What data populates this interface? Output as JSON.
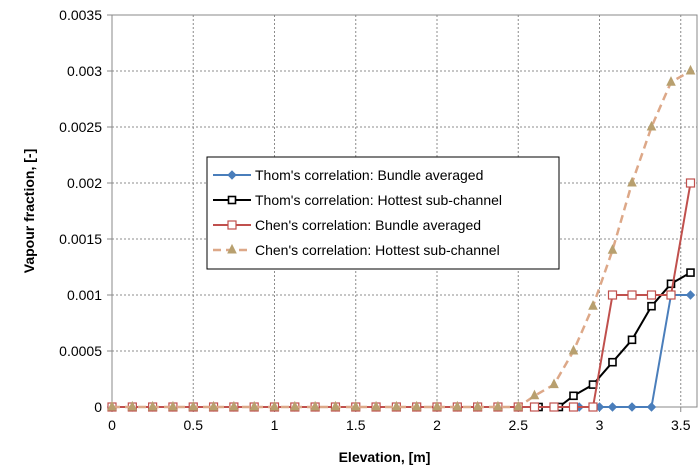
{
  "chart_data": {
    "type": "line",
    "xlabel": "Elevation,  [m]",
    "ylabel": "Vapour fraction, [-]",
    "xlim": [
      0,
      3.6
    ],
    "ylim": [
      0,
      0.0035
    ],
    "x_ticks": [
      "0",
      "0.5",
      "1",
      "1.5",
      "2",
      "2.5",
      "3",
      "3.5"
    ],
    "y_ticks": [
      "0",
      "0.0005",
      "0.001",
      "0.0015",
      "0.002",
      "0.0025",
      "0.003",
      "0.0035"
    ],
    "x_tick_values": [
      0,
      0.5,
      1,
      1.5,
      2,
      2.5,
      3,
      3.5
    ],
    "y_tick_values": [
      0,
      0.0005,
      0.001,
      0.0015,
      0.002,
      0.0025,
      0.003,
      0.0035
    ],
    "grid": true,
    "legend_position": "center-left",
    "series": [
      {
        "name": "Thom's correlation: Bundle averaged",
        "color": "#4a7ebb",
        "marker": "diamond",
        "dashed": false,
        "x": [
          0,
          0.125,
          0.25,
          0.375,
          0.5,
          0.625,
          0.75,
          0.875,
          1.0,
          1.125,
          1.25,
          1.375,
          1.5,
          1.625,
          1.75,
          1.875,
          2.0,
          2.125,
          2.25,
          2.375,
          2.5,
          2.625,
          2.75,
          2.875,
          3.0,
          3.08,
          3.2,
          3.32,
          3.44,
          3.56
        ],
        "y": [
          0,
          0,
          0,
          0,
          0,
          0,
          0,
          0,
          0,
          0,
          0,
          0,
          0,
          0,
          0,
          0,
          0,
          0,
          0,
          0,
          0,
          0,
          0,
          0,
          0,
          0,
          0,
          0,
          0.001,
          0.001
        ]
      },
      {
        "name": "Thom's correlation: Hottest sub-channel",
        "color": "#000000",
        "marker": "square",
        "dashed": false,
        "x": [
          0,
          0.125,
          0.25,
          0.375,
          0.5,
          0.625,
          0.75,
          0.875,
          1.0,
          1.125,
          1.25,
          1.375,
          1.5,
          1.625,
          1.75,
          1.875,
          2.0,
          2.125,
          2.25,
          2.375,
          2.5,
          2.625,
          2.75,
          2.84,
          2.96,
          3.08,
          3.2,
          3.32,
          3.44,
          3.56
        ],
        "y": [
          0,
          0,
          0,
          0,
          0,
          0,
          0,
          0,
          0,
          0,
          0,
          0,
          0,
          0,
          0,
          0,
          0,
          0,
          0,
          0,
          0,
          0,
          0,
          0.0001,
          0.0002,
          0.0004,
          0.0006,
          0.0009,
          0.0011,
          0.0012
        ]
      },
      {
        "name": "Chen's correlation: Bundle averaged",
        "color": "#c0504d",
        "marker": "square-open",
        "dashed": false,
        "x": [
          0,
          0.125,
          0.25,
          0.375,
          0.5,
          0.625,
          0.75,
          0.875,
          1.0,
          1.125,
          1.25,
          1.375,
          1.5,
          1.625,
          1.75,
          1.875,
          2.0,
          2.125,
          2.25,
          2.375,
          2.5,
          2.6,
          2.72,
          2.84,
          2.96,
          3.08,
          3.2,
          3.32,
          3.44,
          3.56
        ],
        "y": [
          0,
          0,
          0,
          0,
          0,
          0,
          0,
          0,
          0,
          0,
          0,
          0,
          0,
          0,
          0,
          0,
          0,
          0,
          0,
          0,
          0,
          0,
          0,
          0,
          0,
          0.001,
          0.001,
          0.001,
          0.001,
          0.002
        ]
      },
      {
        "name": "Chen's correlation: Hottest sub-channel",
        "color": "#dda888",
        "marker": "triangle",
        "dashed": true,
        "marker_color": "#b8a06f",
        "x": [
          0,
          0.125,
          0.25,
          0.375,
          0.5,
          0.625,
          0.75,
          0.875,
          1.0,
          1.125,
          1.25,
          1.375,
          1.5,
          1.625,
          1.75,
          1.875,
          2.0,
          2.125,
          2.25,
          2.375,
          2.5,
          2.6,
          2.72,
          2.84,
          2.96,
          3.08,
          3.2,
          3.32,
          3.44,
          3.56
        ],
        "y": [
          0,
          0,
          0,
          0,
          0,
          0,
          0,
          0,
          0,
          0,
          0,
          0,
          0,
          0,
          0,
          0,
          0,
          0,
          0,
          0,
          0,
          0.0001,
          0.0002,
          0.0005,
          0.0009,
          0.0014,
          0.002,
          0.0025,
          0.0029,
          0.003
        ]
      }
    ]
  }
}
